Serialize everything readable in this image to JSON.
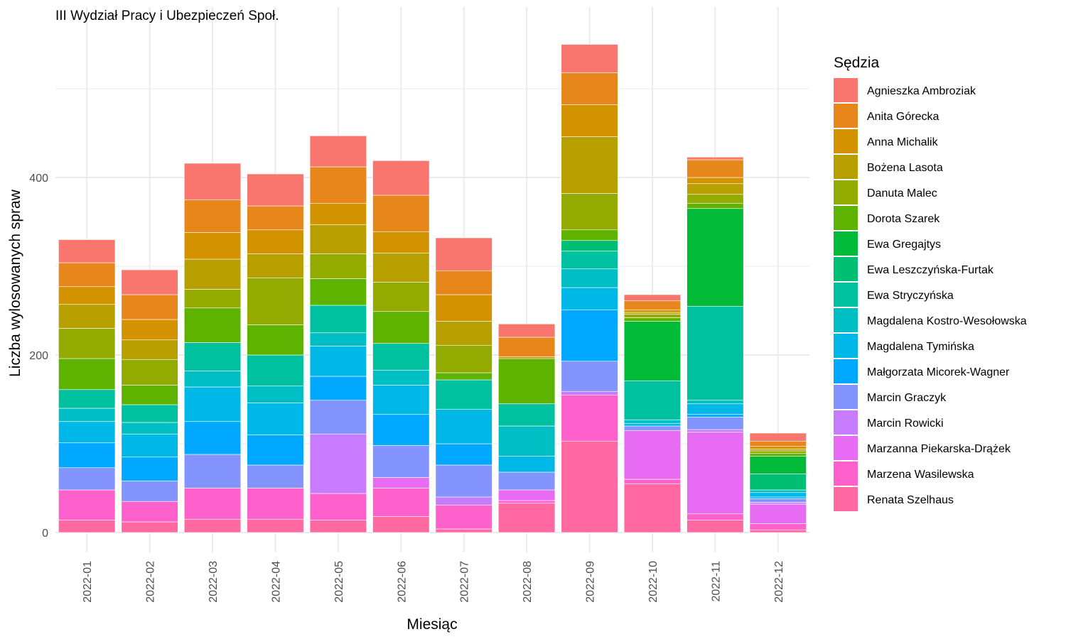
{
  "chart_data": {
    "type": "bar",
    "stacked": true,
    "title": "III Wydział Pracy i Ubezpieczeń Społ.",
    "xlabel": "Miesiąc",
    "ylabel": "Liczba wylosowanych spraw",
    "ylim": [
      -22,
      565
    ],
    "yticks": [
      0,
      200,
      400
    ],
    "grid": true,
    "legend": {
      "title": "Sędzia",
      "position": "right"
    },
    "categories": [
      "2022-01",
      "2022-02",
      "2022-03",
      "2022-04",
      "2022-05",
      "2022-06",
      "2022-07",
      "2022-08",
      "2022-09",
      "2022-10",
      "2022-11",
      "2022-12"
    ],
    "series": [
      {
        "name": "Agnieszka Ambroziak",
        "color": "#F8766D",
        "values": [
          26,
          28,
          41,
          36,
          35,
          39,
          37,
          15,
          32,
          7,
          3,
          9
        ]
      },
      {
        "name": "Anita Górecka",
        "color": "#E7861B",
        "values": [
          27,
          28,
          37,
          27,
          41,
          41,
          27,
          22,
          36,
          10,
          20,
          6
        ]
      },
      {
        "name": "Anna Michalik",
        "color": "#D39200",
        "values": [
          20,
          23,
          30,
          27,
          24,
          24,
          30,
          2,
          36,
          3,
          7,
          3
        ]
      },
      {
        "name": "Bożena Lasota",
        "color": "#B79F00",
        "values": [
          27,
          22,
          34,
          27,
          33,
          33,
          27,
          0,
          64,
          2,
          12,
          2
        ]
      },
      {
        "name": "Danuta Malec",
        "color": "#93AA00",
        "values": [
          34,
          29,
          21,
          53,
          28,
          33,
          31,
          0,
          41,
          4,
          10,
          3
        ]
      },
      {
        "name": "Dorota Szarek",
        "color": "#5EB300",
        "values": [
          35,
          22,
          39,
          34,
          30,
          36,
          8,
          51,
          12,
          4,
          6,
          3
        ]
      },
      {
        "name": "Ewa Gregajtys",
        "color": "#00BA38",
        "values": [
          0,
          0,
          0,
          0,
          0,
          0,
          0,
          0,
          0,
          67,
          110,
          20
        ]
      },
      {
        "name": "Ewa Leszczyńska-Furtak",
        "color": "#00BF74",
        "values": [
          0,
          0,
          0,
          0,
          0,
          0,
          0,
          0,
          12,
          0,
          0,
          18
        ]
      },
      {
        "name": "Ewa Stryczyńska",
        "color": "#00C19F",
        "values": [
          21,
          20,
          32,
          35,
          31,
          30,
          33,
          25,
          20,
          44,
          106,
          0
        ]
      },
      {
        "name": "Magdalena Kostro-Wesołowska",
        "color": "#00BFC4",
        "values": [
          15,
          13,
          18,
          19,
          15,
          17,
          0,
          34,
          21,
          4,
          4,
          3
        ]
      },
      {
        "name": "Magdalena Tymińska",
        "color": "#00B8E7",
        "values": [
          24,
          26,
          39,
          36,
          34,
          33,
          39,
          18,
          25,
          3,
          12,
          5
        ]
      },
      {
        "name": "Małgorzata Micorek-Wagner",
        "color": "#00A9FF",
        "values": [
          28,
          27,
          37,
          34,
          27,
          35,
          24,
          0,
          58,
          0,
          3,
          2
        ]
      },
      {
        "name": "Marcin Graczyk",
        "color": "#8494FF",
        "values": [
          25,
          23,
          38,
          26,
          38,
          36,
          36,
          20,
          34,
          5,
          14,
          4
        ]
      },
      {
        "name": "Marcin Rowicki",
        "color": "#C77CFF",
        "values": [
          0,
          0,
          0,
          0,
          67,
          0,
          9,
          0,
          4,
          0,
          3,
          2
        ]
      },
      {
        "name": "Marzanna Piekarska-Drążek",
        "color": "#E76BF3",
        "values": [
          0,
          0,
          0,
          0,
          0,
          12,
          0,
          12,
          0,
          55,
          92,
          22
        ]
      },
      {
        "name": "Marzena Wasilewska",
        "color": "#FF61CC",
        "values": [
          34,
          23,
          35,
          35,
          30,
          32,
          27,
          3,
          52,
          5,
          7,
          7
        ]
      },
      {
        "name": "Renata Szelhaus",
        "color": "#FF68A1",
        "values": [
          14,
          12,
          15,
          15,
          14,
          18,
          4,
          33,
          103,
          55,
          14,
          3
        ]
      }
    ]
  }
}
